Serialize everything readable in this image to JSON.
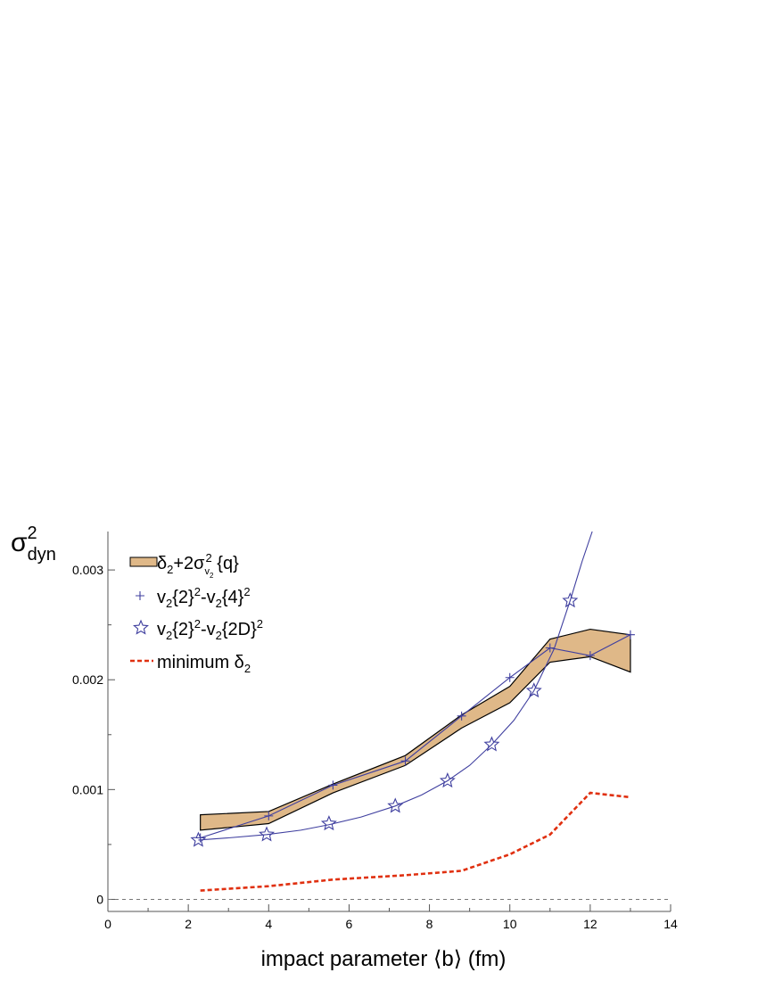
{
  "chart_data": {
    "type": "line",
    "xlabel_parts": {
      "main": "impact parameter",
      "b_open": "⟨",
      "b_var": "b",
      "b_close": "⟩",
      "unit": "(fm)"
    },
    "ylabel": {
      "base": "σ",
      "sup": "2",
      "sub": "dyn"
    },
    "xlim": [
      0,
      14
    ],
    "ylim": [
      -0.00011,
      0.00335
    ],
    "x_ticks": [
      0,
      2,
      4,
      6,
      8,
      10,
      12,
      14
    ],
    "x_tick_labels": [
      "0",
      "2",
      "4",
      "6",
      "8",
      "10",
      "12",
      "14"
    ],
    "y_ticks": [
      0,
      0.001,
      0.002,
      0.003
    ],
    "y_tick_labels": [
      "0",
      "0.001",
      "0.002",
      "0.003"
    ],
    "zero_line": true,
    "grid": false,
    "legend_position": "top-left",
    "legend": [
      {
        "parts": [
          "δ",
          "2",
          "+2σ",
          "v",
          "2",
          "2",
          " {q}"
        ],
        "kind": "band"
      },
      {
        "parts": [
          "v",
          "2",
          "{2}",
          "2",
          "-v",
          "2",
          "{4}",
          "2"
        ],
        "kind": "plus"
      },
      {
        "parts": [
          "v",
          "2",
          "{2}",
          "2",
          "-v",
          "2",
          "{2D}",
          "2"
        ],
        "kind": "star"
      },
      {
        "parts": [
          "minimum δ",
          "2"
        ],
        "kind": "dashed"
      }
    ],
    "series": {
      "band_q": {
        "x": [
          2.3,
          4.0,
          5.6,
          7.4,
          8.8,
          10.0,
          11.0,
          12.0,
          13.0
        ],
        "upper": [
          0.00077,
          0.0008,
          0.00105,
          0.00131,
          0.00168,
          0.00194,
          0.00237,
          0.00246,
          0.00241
        ],
        "lower": [
          0.00063,
          0.00069,
          0.00097,
          0.00122,
          0.00156,
          0.00179,
          0.00216,
          0.00221,
          0.00207
        ],
        "fill": "#dfb888",
        "stroke": "#000000"
      },
      "v2_4": {
        "x": [
          2.3,
          4.0,
          5.6,
          7.4,
          8.8,
          10.0,
          11.0,
          12.0,
          13.0
        ],
        "y": [
          0.00056,
          0.00076,
          0.00104,
          0.00126,
          0.00167,
          0.00202,
          0.00229,
          0.00222,
          0.00241
        ],
        "color": "#3f3f9f"
      },
      "v2_2D": {
        "x": [
          2.25,
          3.95,
          5.5,
          7.15,
          8.45,
          9.55,
          10.6,
          11.5
        ],
        "y": [
          0.00054,
          0.00059,
          0.00069,
          0.00085,
          0.00108,
          0.00141,
          0.0019,
          0.00272
        ],
        "curve_x": [
          2.25,
          3.0,
          3.95,
          4.8,
          5.5,
          6.3,
          7.15,
          7.8,
          8.45,
          9.0,
          9.55,
          10.1,
          10.6,
          11.1,
          11.5,
          11.8,
          12.05
        ],
        "curve_y": [
          0.00054,
          0.00056,
          0.00059,
          0.00063,
          0.00068,
          0.00075,
          0.00085,
          0.00095,
          0.00108,
          0.00122,
          0.00141,
          0.00163,
          0.0019,
          0.00228,
          0.00272,
          0.00308,
          0.00335
        ],
        "color": "#3f3f9f"
      },
      "min_delta2": {
        "x": [
          2.3,
          4.0,
          5.6,
          7.4,
          8.8,
          10.0,
          11.0,
          12.0,
          13.0
        ],
        "y": [
          8e-05,
          0.00012,
          0.00018,
          0.00022,
          0.00026,
          0.00041,
          0.00059,
          0.00097,
          0.00093
        ],
        "color": "#e03010"
      }
    }
  }
}
